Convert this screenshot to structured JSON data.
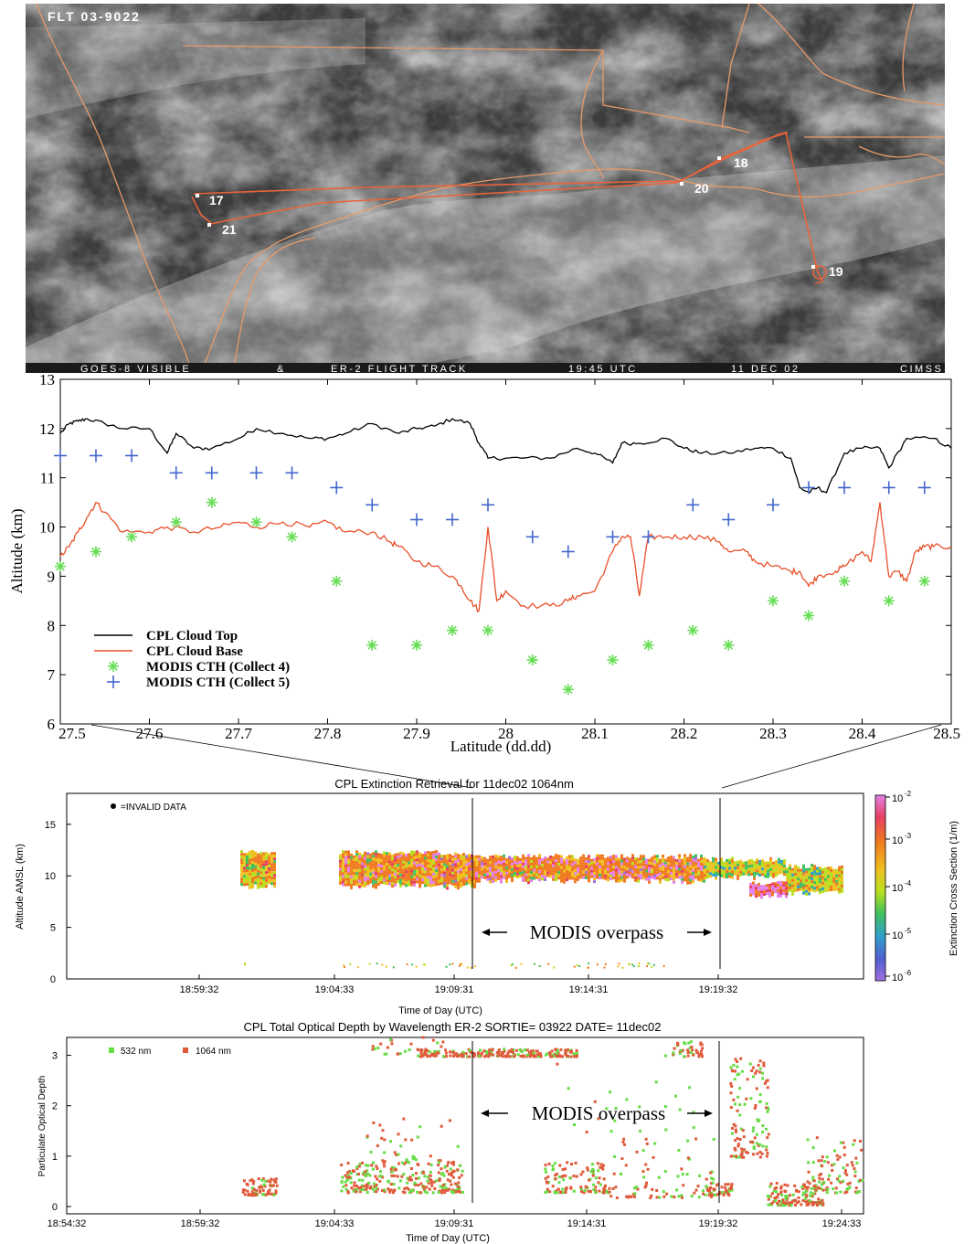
{
  "satellite": {
    "flight_label": "FLT 03-9022",
    "footer": [
      "GOES-8 VISIBLE",
      "&",
      "ER-2 FLIGHT TRACK",
      "19:45 UTC",
      "11 DEC 02",
      "CIMSS"
    ],
    "waypoints": [
      "17",
      "18",
      "19",
      "20",
      "21"
    ],
    "track_color": "#e8643a",
    "border_color": "#e89a6a"
  },
  "chart_data": [
    {
      "type": "line",
      "xlabel": "Latitude (dd.dd)",
      "ylabel": "Altitude (km)",
      "xlim": [
        27.5,
        28.5
      ],
      "ylim": [
        6,
        13
      ],
      "x_ticks": [
        "27.5",
        "27.6",
        "27.7",
        "27.8",
        "27.9",
        "28",
        "28.1",
        "28.2",
        "28.3",
        "28.4",
        "28.5"
      ],
      "y_ticks": [
        "6",
        "7",
        "8",
        "9",
        "10",
        "11",
        "12",
        "13"
      ],
      "legend_position": "bottom-left",
      "series": [
        {
          "name": "CPL Cloud Top",
          "color": "#000000",
          "x": [
            27.5,
            27.51,
            27.52,
            27.53,
            27.55,
            27.57,
            27.6,
            27.62,
            27.63,
            27.65,
            27.67,
            27.7,
            27.72,
            27.75,
            27.78,
            27.8,
            27.82,
            27.85,
            27.88,
            27.9,
            27.92,
            27.94,
            27.96,
            27.97,
            27.98,
            28.0,
            28.02,
            28.05,
            28.08,
            28.1,
            28.12,
            28.13,
            28.15,
            28.18,
            28.2,
            28.22,
            28.25,
            28.28,
            28.3,
            28.32,
            28.33,
            28.34,
            28.35,
            28.36,
            28.38,
            28.4,
            28.42,
            28.43,
            28.45,
            28.48,
            28.5
          ],
          "y": [
            11.9,
            12.1,
            12.15,
            12.2,
            12.1,
            12.0,
            12.0,
            11.5,
            11.9,
            11.6,
            11.6,
            11.8,
            12.0,
            11.9,
            11.8,
            11.8,
            11.9,
            12.1,
            11.9,
            12.0,
            12.05,
            12.2,
            12.1,
            11.7,
            11.4,
            11.4,
            11.4,
            11.4,
            11.6,
            11.5,
            11.3,
            11.7,
            11.7,
            11.8,
            11.6,
            11.5,
            11.5,
            11.6,
            11.6,
            11.4,
            10.8,
            10.7,
            10.8,
            10.7,
            11.5,
            11.6,
            11.6,
            11.2,
            11.8,
            11.8,
            11.6
          ]
        },
        {
          "name": "CPL Cloud Base",
          "color": "#e8502a",
          "x": [
            27.5,
            27.51,
            27.52,
            27.53,
            27.54,
            27.55,
            27.57,
            27.6,
            27.62,
            27.65,
            27.68,
            27.7,
            27.72,
            27.75,
            27.78,
            27.8,
            27.82,
            27.85,
            27.87,
            27.88,
            27.9,
            27.92,
            27.94,
            27.95,
            27.96,
            27.97,
            27.98,
            27.99,
            28.0,
            28.02,
            28.05,
            28.07,
            28.08,
            28.1,
            28.12,
            28.13,
            28.14,
            28.15,
            28.16,
            28.18,
            28.2,
            28.22,
            28.24,
            28.25,
            28.27,
            28.28,
            28.3,
            28.32,
            28.33,
            28.34,
            28.35,
            28.37,
            28.38,
            28.4,
            28.41,
            28.42,
            28.43,
            28.44,
            28.45,
            28.46,
            28.47,
            28.48,
            28.5
          ],
          "y": [
            9.4,
            9.6,
            9.9,
            10.2,
            10.5,
            10.3,
            9.9,
            9.9,
            10.0,
            9.9,
            10.0,
            10.1,
            10.0,
            10.1,
            10.0,
            10.1,
            9.9,
            9.9,
            9.7,
            9.6,
            9.3,
            9.2,
            9.0,
            8.8,
            8.5,
            8.3,
            10.0,
            8.5,
            8.7,
            8.4,
            8.4,
            8.5,
            8.6,
            8.7,
            9.5,
            9.8,
            9.8,
            8.6,
            9.8,
            9.8,
            9.8,
            9.8,
            9.7,
            9.5,
            9.5,
            9.3,
            9.2,
            9.1,
            9.1,
            8.8,
            9.0,
            9.1,
            9.2,
            9.5,
            9.3,
            10.5,
            9.0,
            9.1,
            8.9,
            9.5,
            9.6,
            9.6,
            9.6
          ]
        },
        {
          "name": "MODIS CTH (Collect 4)",
          "color": "#66dd55",
          "marker": "asterisk",
          "x": [
            27.5,
            27.54,
            27.58,
            27.63,
            27.67,
            27.72,
            27.76,
            27.81,
            27.85,
            27.9,
            27.94,
            27.98,
            28.03,
            28.07,
            28.12,
            28.16,
            28.21,
            28.25,
            28.3,
            28.34,
            28.38,
            28.43,
            28.47
          ],
          "y": [
            9.2,
            9.5,
            9.8,
            10.1,
            10.5,
            10.1,
            9.8,
            8.9,
            7.6,
            7.6,
            7.9,
            7.9,
            7.3,
            6.7,
            7.3,
            7.6,
            7.9,
            7.6,
            8.5,
            8.2,
            8.9,
            8.5,
            8.9
          ]
        },
        {
          "name": "MODIS CTH (Collect 5)",
          "color": "#4466cc",
          "marker": "plus",
          "x": [
            27.5,
            27.54,
            27.58,
            27.63,
            27.67,
            27.72,
            27.76,
            27.81,
            27.85,
            27.9,
            27.94,
            27.98,
            28.03,
            28.07,
            28.12,
            28.16,
            28.21,
            28.25,
            28.3,
            28.34,
            28.38,
            28.43,
            28.47
          ],
          "y": [
            11.45,
            11.45,
            11.45,
            11.1,
            11.1,
            11.1,
            11.1,
            10.8,
            10.45,
            10.15,
            10.15,
            10.45,
            9.8,
            9.5,
            9.8,
            9.8,
            10.45,
            10.15,
            10.45,
            10.8,
            10.8,
            10.8,
            10.8
          ]
        }
      ]
    },
    {
      "type": "heatmap",
      "title": "CPL Extinction Retrieval for 11dec02 1064nm",
      "xlabel": "Time of Day (UTC)",
      "ylabel": "Altitude AMSL (km)",
      "ylim": [
        0,
        18
      ],
      "x_ticks": [
        "18:59:32",
        "19:04:33",
        "19:09:31",
        "19:14:31",
        "19:19:32"
      ],
      "y_ticks": [
        "0",
        "5",
        "10",
        "15"
      ],
      "colorbar_label": "Extinction Cross Section (1/m)",
      "colorbar_ticks": [
        "-2",
        "-3",
        "-4",
        "-5",
        "-6"
      ],
      "colorbar_base": "10",
      "colorbar_colors": [
        "#e480e8",
        "#e84060",
        "#f07a20",
        "#f0c020",
        "#b8e020",
        "#40c060",
        "#30a0c8",
        "#5060d0",
        "#a070e0"
      ],
      "invalid_legend": "=INVALID DATA",
      "annotation": "MODIS overpass",
      "overpass_ticks": [
        "19:09:31",
        "19:19:32"
      ]
    },
    {
      "type": "scatter",
      "title": "CPL Total Optical Depth by Wavelength ER-2 SORTIE= 03922 DATE= 11dec02",
      "xlabel": "Time of Day (UTC)",
      "ylabel": "Particulate Optical Depth",
      "ylim": [
        0,
        3.5
      ],
      "x_ticks": [
        "18:54:32",
        "18:59:32",
        "19:04:33",
        "19:09:31",
        "19:14:31",
        "19:19:32",
        "19:24:33"
      ],
      "y_ticks": [
        "0",
        "1",
        "2",
        "3"
      ],
      "annotation": "MODIS overpass",
      "series": [
        {
          "name": "532 nm",
          "color": "#66dd44"
        },
        {
          "name": "1064 nm",
          "color": "#e05a3a"
        }
      ]
    }
  ]
}
